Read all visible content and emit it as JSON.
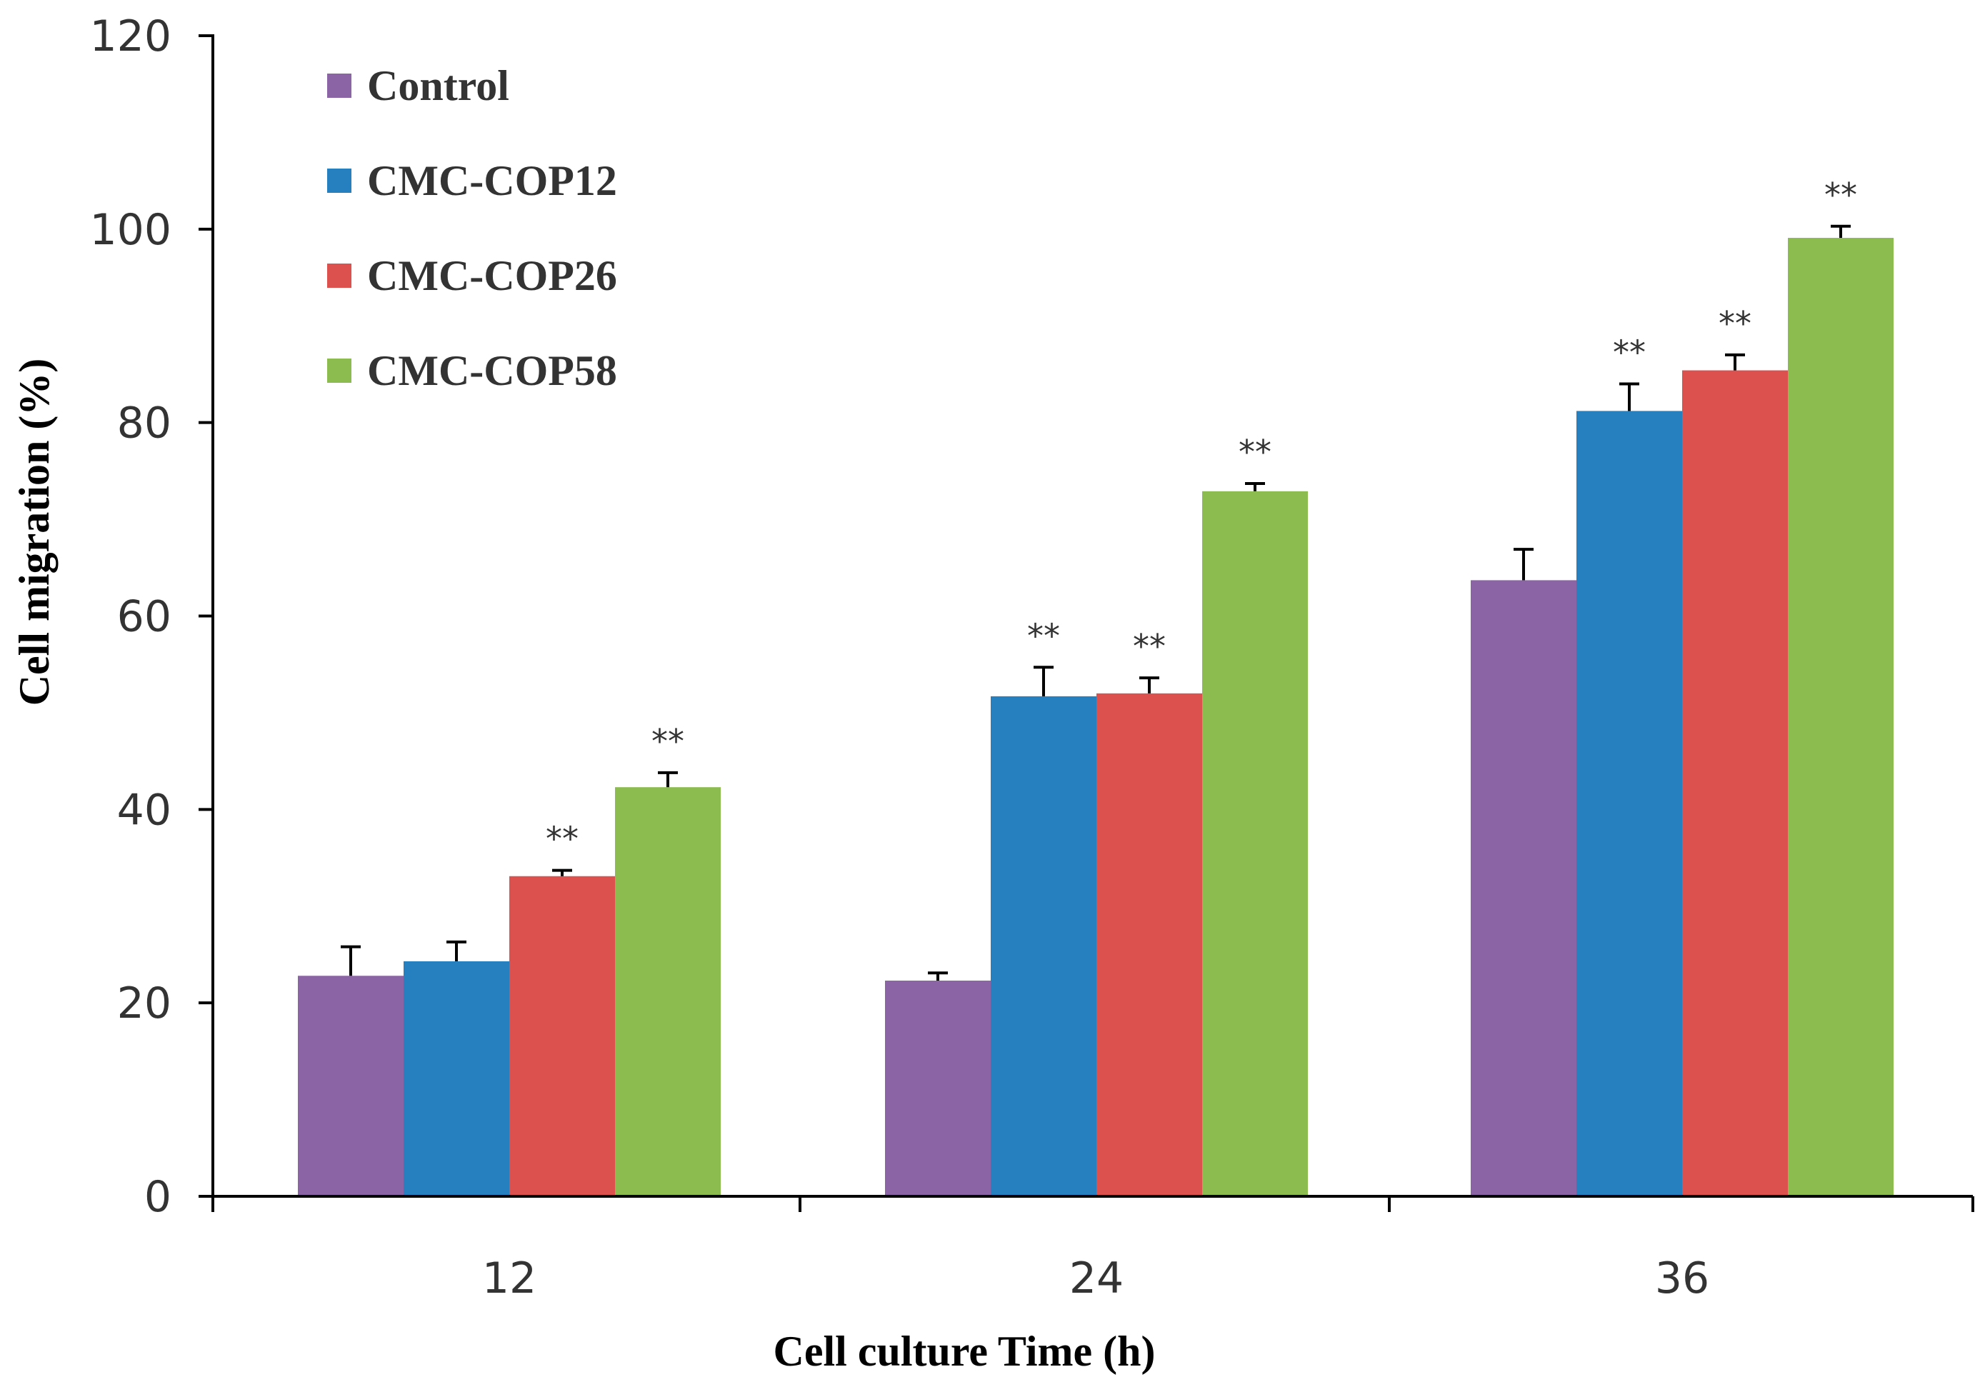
{
  "chart_data": {
    "type": "bar",
    "title": "",
    "xlabel": "Cell culture Time (h)",
    "ylabel": "Cell  migration (%)",
    "categories": [
      "12",
      "24",
      "36"
    ],
    "ylim": [
      0,
      120
    ],
    "yticks": [
      0,
      20,
      40,
      60,
      80,
      100,
      120
    ],
    "legend_position": "top-left",
    "grid": false,
    "significance_symbol": "**",
    "series": [
      {
        "name": "Control",
        "color": "#8a64a4",
        "values": [
          22.8,
          22.3,
          63.7
        ],
        "errors": [
          3.0,
          0.8,
          3.2
        ],
        "significant": [
          false,
          false,
          false
        ]
      },
      {
        "name": "CMC-COP12",
        "color": "#2680c0",
        "values": [
          24.3,
          51.7,
          81.2
        ],
        "errors": [
          2.0,
          3.0,
          2.8
        ],
        "significant": [
          false,
          true,
          true
        ]
      },
      {
        "name": "CMC-COP26",
        "color": "#dc504e",
        "values": [
          33.1,
          52.0,
          85.4
        ],
        "errors": [
          0.6,
          1.6,
          1.6
        ],
        "significant": [
          true,
          true,
          true
        ]
      },
      {
        "name": "CMC-COP58",
        "color": "#8cbc50",
        "values": [
          42.3,
          72.9,
          99.1
        ],
        "errors": [
          1.5,
          0.8,
          1.2
        ],
        "significant": [
          true,
          true,
          true
        ]
      }
    ]
  }
}
